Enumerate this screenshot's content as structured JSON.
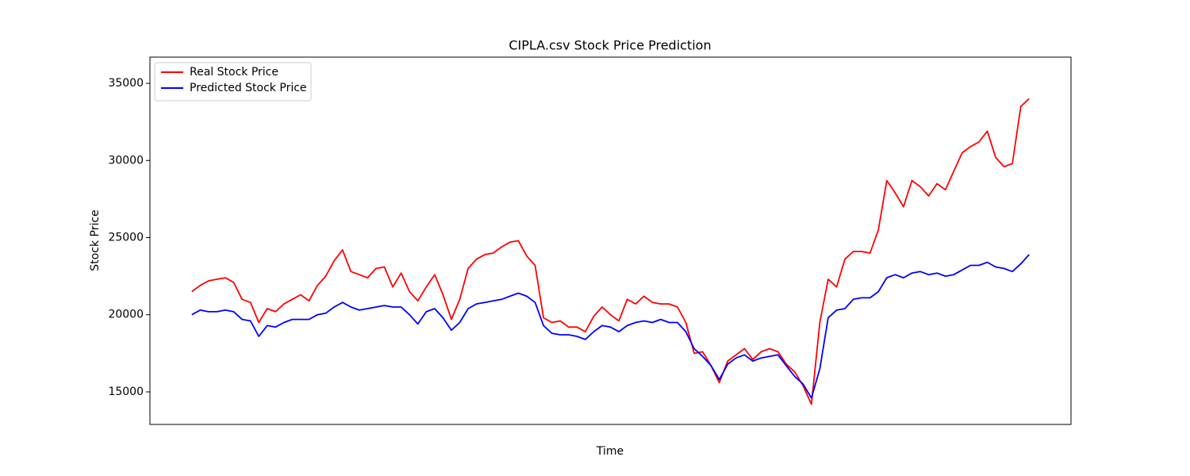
{
  "chart_data": {
    "type": "line",
    "title": "CIPLA.csv Stock Price Prediction",
    "x_label": "Time",
    "y_label": "Stock Price",
    "legend": "upper left",
    "ylim": [
      12890,
      36700
    ],
    "yticks": [
      15000,
      20000,
      25000,
      30000,
      35000
    ],
    "series": [
      {
        "name": "Real Stock Price",
        "color": "#ff0000",
        "values": [
          21500,
          21900,
          22200,
          22300,
          22400,
          22100,
          21000,
          20800,
          19500,
          20400,
          20200,
          20700,
          21000,
          21300,
          20900,
          21900,
          22500,
          23500,
          24200,
          22800,
          22600,
          22400,
          23000,
          23100,
          21800,
          22700,
          21500,
          20900,
          21800,
          22600,
          21300,
          19700,
          21000,
          23000,
          23600,
          23900,
          24000,
          24400,
          24700,
          24800,
          23800,
          23200,
          19800,
          19500,
          19600,
          19200,
          19200,
          18900,
          19900,
          20500,
          20000,
          19600,
          21000,
          20700,
          21200,
          20800,
          20700,
          20700,
          20500,
          19500,
          17500,
          17600,
          16700,
          15600,
          17000,
          17400,
          17800,
          17100,
          17600,
          17800,
          17600,
          16800,
          16300,
          15400,
          14200,
          19500,
          22300,
          21800,
          23600,
          24100,
          24100,
          24000,
          25500,
          28700,
          27900,
          27000,
          28700,
          28300,
          27700,
          28500,
          28100,
          29300,
          30500,
          30900,
          31200,
          31900,
          30200,
          29600,
          29800,
          33500,
          34000
        ]
      },
      {
        "name": "Predicted Stock Price",
        "color": "#0000ff",
        "values": [
          20000,
          20300,
          20200,
          20200,
          20300,
          20200,
          19700,
          19600,
          18600,
          19300,
          19200,
          19500,
          19700,
          19700,
          19700,
          20000,
          20100,
          20500,
          20800,
          20500,
          20300,
          20400,
          20500,
          20600,
          20500,
          20500,
          20000,
          19400,
          20200,
          20400,
          19800,
          19000,
          19500,
          20400,
          20700,
          20800,
          20900,
          21000,
          21200,
          21400,
          21200,
          20800,
          19300,
          18800,
          18700,
          18700,
          18600,
          18400,
          18900,
          19300,
          19200,
          18900,
          19300,
          19500,
          19600,
          19500,
          19700,
          19500,
          19500,
          18900,
          17800,
          17300,
          16700,
          15800,
          16800,
          17200,
          17400,
          17000,
          17200,
          17300,
          17400,
          16700,
          16000,
          15500,
          14600,
          16500,
          19800,
          20300,
          20400,
          21000,
          21100,
          21100,
          21500,
          22400,
          22600,
          22400,
          22700,
          22800,
          22600,
          22700,
          22500,
          22600,
          22900,
          23200,
          23200,
          23400,
          23100,
          23000,
          22800,
          23300,
          23900
        ]
      }
    ]
  }
}
